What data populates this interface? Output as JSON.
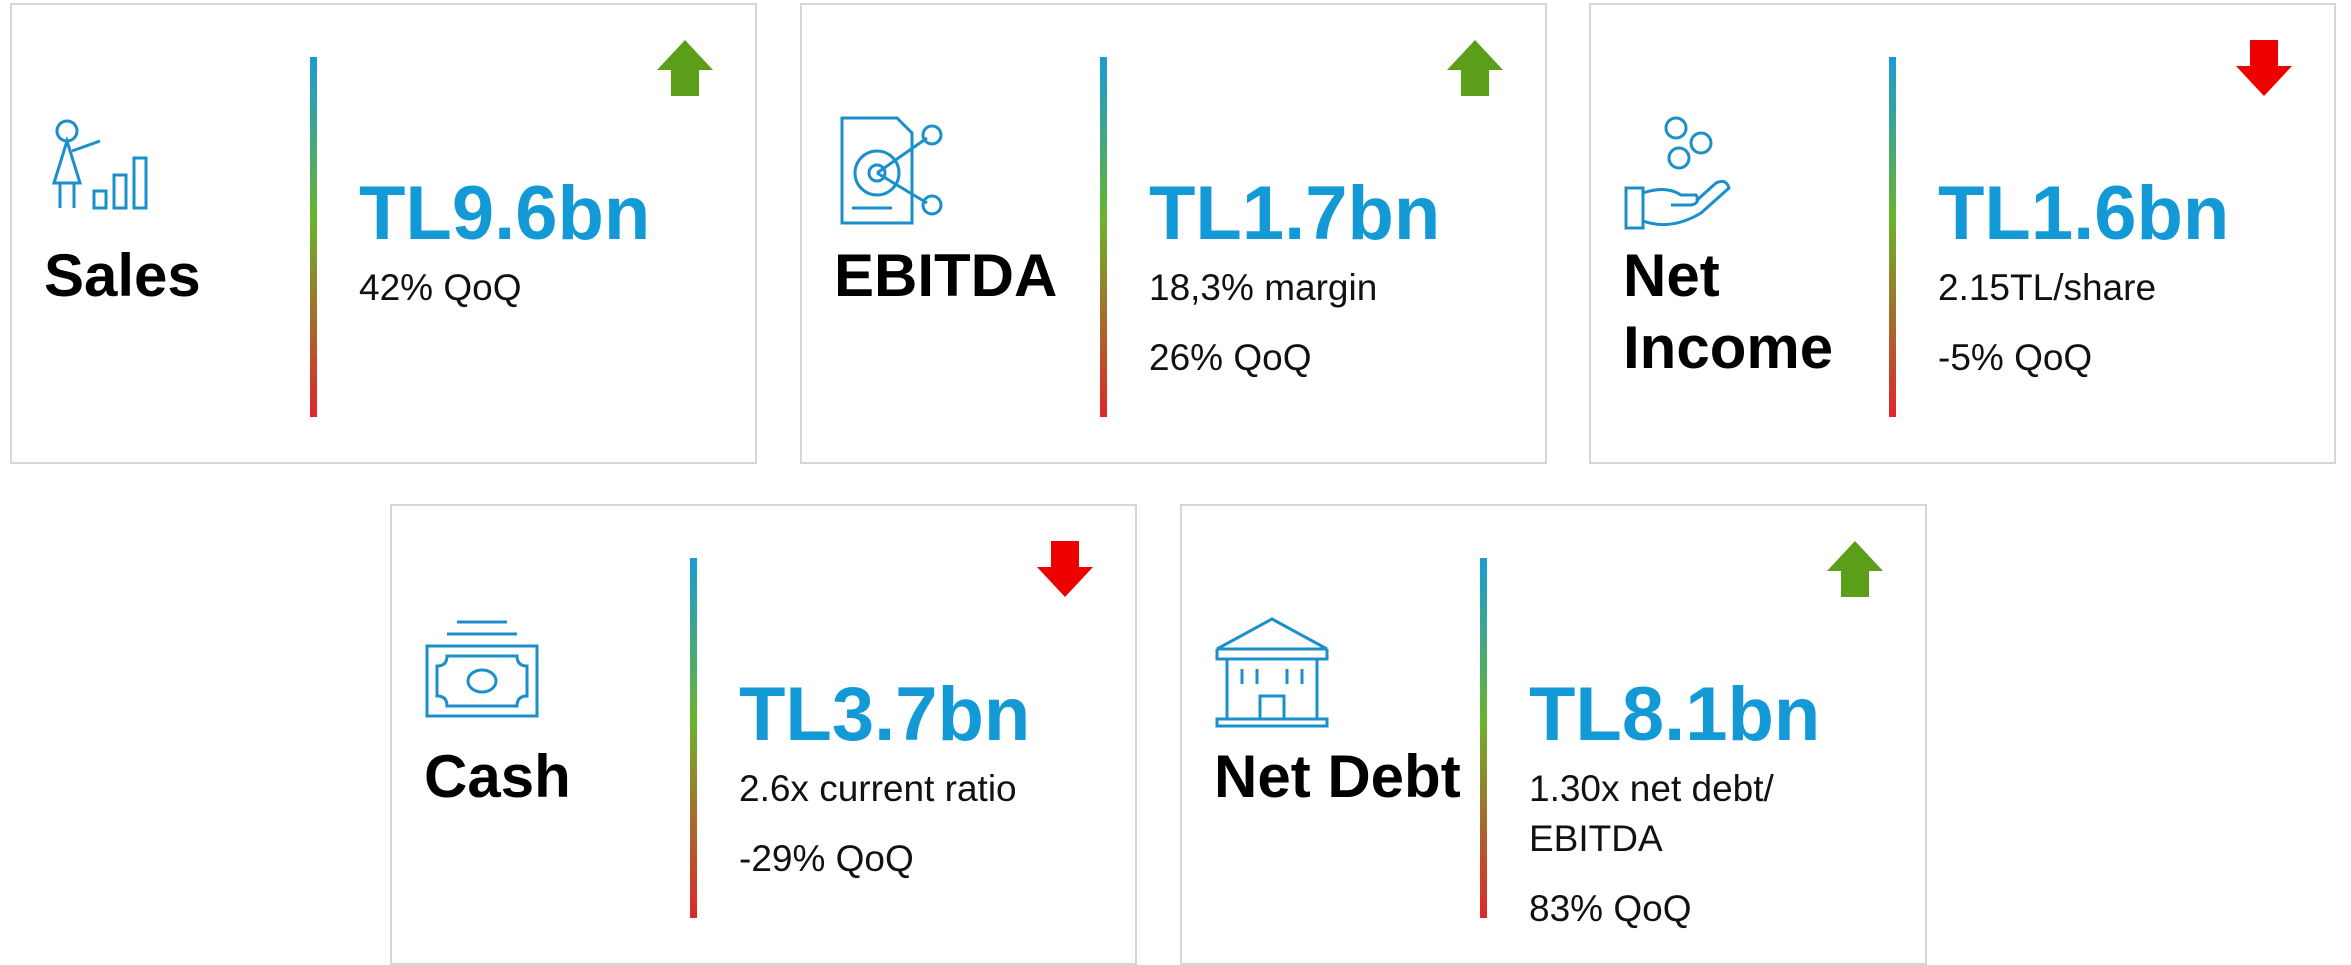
{
  "cards": [
    {
      "label": "Sales",
      "value": "TL9.6bn",
      "lines": [
        "42% QoQ"
      ],
      "trend": "up"
    },
    {
      "label": "EBITDA",
      "value": "TL1.7bn",
      "lines": [
        "18,3% margin",
        "26% QoQ"
      ],
      "trend": "up"
    },
    {
      "label": "Net Income",
      "value": "TL1.6bn",
      "lines": [
        "2.15TL/share",
        "-5% QoQ"
      ],
      "trend": "down"
    },
    {
      "label": "Cash",
      "value": "TL3.7bn",
      "lines": [
        "2.6x current ratio",
        "-29% QoQ"
      ],
      "trend": "down"
    },
    {
      "label": "Net Debt",
      "value": "TL8.1bn",
      "lines": [
        "1.30x net debt/ EBITDA",
        "83% QoQ"
      ],
      "trend": "up"
    }
  ]
}
